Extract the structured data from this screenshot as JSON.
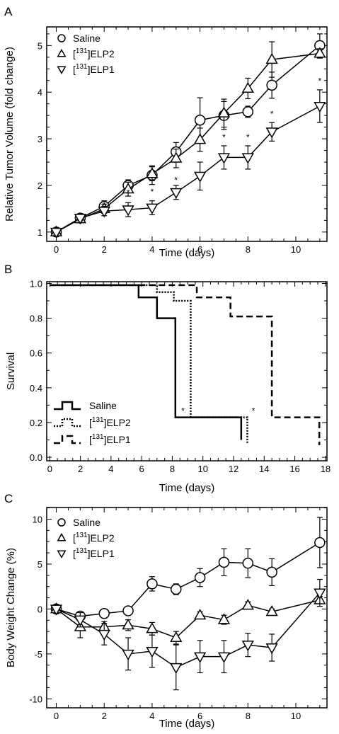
{
  "chart_data": [
    {
      "type": "line",
      "panel": "A",
      "xlabel": "Time (days)",
      "ylabel": "Relative Tumor Volume (fold change)",
      "xlim": [
        -0.4,
        11.3
      ],
      "ylim": [
        0.8,
        5.4
      ],
      "xticks": [
        0,
        2,
        4,
        6,
        8,
        10
      ],
      "yticks": [
        1,
        2,
        3,
        4,
        5
      ],
      "legend": "top-left",
      "series": [
        {
          "name": "Saline",
          "marker": "circle",
          "x": [
            0,
            1,
            2,
            3,
            4,
            5,
            6,
            7,
            8,
            9,
            11
          ],
          "y": [
            1.0,
            1.3,
            1.55,
            2.0,
            2.22,
            2.72,
            3.4,
            3.5,
            3.58,
            4.15,
            5.0
          ],
          "err": [
            0.05,
            0.08,
            0.12,
            0.12,
            0.2,
            0.2,
            0.48,
            0.3,
            0.12,
            0.28,
            0.25
          ]
        },
        {
          "name": "ELP2",
          "sup": "131",
          "prefix": "[",
          "suffix": "]ELP2",
          "marker": "triangle-up",
          "x": [
            0,
            1,
            2,
            3,
            4,
            5,
            6,
            7,
            8,
            9,
            11
          ],
          "y": [
            1.0,
            1.28,
            1.5,
            1.92,
            2.25,
            2.58,
            2.98,
            3.55,
            4.08,
            4.7,
            4.83
          ],
          "err": [
            0.05,
            0.08,
            0.1,
            0.15,
            0.15,
            0.2,
            0.25,
            0.3,
            0.22,
            0.38,
            0.1
          ]
        },
        {
          "name": "ELP1",
          "sup": "131",
          "prefix": "[",
          "suffix": "]ELP1",
          "marker": "triangle-down",
          "x": [
            0,
            1,
            2,
            3,
            4,
            5,
            6,
            7,
            8,
            9,
            11
          ],
          "y": [
            1.0,
            1.3,
            1.45,
            1.48,
            1.52,
            1.85,
            2.2,
            2.6,
            2.6,
            3.15,
            3.7
          ],
          "err": [
            0.05,
            0.06,
            0.1,
            0.15,
            0.15,
            0.15,
            0.3,
            0.25,
            0.25,
            0.2,
            0.35
          ]
        }
      ],
      "annotations": [
        {
          "text": "*",
          "x": 3,
          "y": 1.78
        },
        {
          "text": "*",
          "x": 4,
          "y": 1.8
        },
        {
          "text": "*",
          "x": 5,
          "y": 2.05
        },
        {
          "text": "*",
          "x": 7,
          "y": 2.97
        },
        {
          "text": "*",
          "x": 8,
          "y": 2.97
        },
        {
          "text": "*",
          "x": 9,
          "y": 3.47
        },
        {
          "text": "*",
          "x": 11,
          "y": 4.18
        }
      ]
    },
    {
      "type": "step",
      "panel": "B",
      "xlabel": "Time (days)",
      "ylabel": "Survival",
      "xlim": [
        -0.2,
        18.1
      ],
      "ylim": [
        -0.02,
        1.01
      ],
      "xticks": [
        0,
        2,
        4,
        6,
        8,
        10,
        12,
        14,
        16,
        18
      ],
      "yticks": [
        "0.0",
        "0.2",
        "0.4",
        "0.6",
        "0.8",
        "1.0"
      ],
      "legend": "bottom-left",
      "series": [
        {
          "name": "Saline",
          "style": "solid",
          "x": [
            0,
            5.8,
            7,
            8.2,
            12.5,
            12.5
          ],
          "y": [
            0.99,
            0.92,
            0.8,
            0.23,
            0.23,
            0.1
          ]
        },
        {
          "name": "ELP2",
          "sup": "131",
          "prefix": "[",
          "suffix": "]ELP2",
          "style": "dotted",
          "x": [
            0,
            7,
            8.1,
            9.2,
            12.9,
            12.9
          ],
          "y": [
            0.99,
            0.95,
            0.9,
            0.23,
            0.23,
            0.08
          ]
        },
        {
          "name": "ELP1",
          "sup": "131",
          "prefix": "[",
          "suffix": "]ELP1",
          "style": "dashed",
          "x": [
            0,
            9.6,
            11.8,
            14.5,
            17.6,
            17.6
          ],
          "y": [
            0.99,
            0.92,
            0.81,
            0.23,
            0.23,
            0.07
          ]
        }
      ],
      "annotations": [
        {
          "text": "*",
          "x": 8.7,
          "y": 0.25
        },
        {
          "text": "*",
          "x": 13.3,
          "y": 0.25
        }
      ]
    },
    {
      "type": "line",
      "panel": "C",
      "xlabel": "Time (days)",
      "ylabel": "Body Weight Change (%)",
      "xlim": [
        -0.4,
        11.3
      ],
      "ylim": [
        -11,
        11.3
      ],
      "xticks": [
        0,
        2,
        4,
        6,
        8,
        10
      ],
      "yticks": [
        -10,
        -5,
        0,
        5,
        10
      ],
      "legend": "top-left",
      "series": [
        {
          "name": "Saline",
          "marker": "circle",
          "x": [
            0,
            1,
            2,
            3,
            4,
            5,
            6,
            7,
            8,
            9,
            11
          ],
          "y": [
            0,
            -0.8,
            -0.5,
            -0.2,
            2.8,
            2.2,
            3.5,
            5.2,
            5.1,
            4.1,
            7.4
          ],
          "err": [
            0.2,
            0.4,
            0.3,
            0.4,
            0.8,
            0.6,
            1.0,
            1.5,
            1.6,
            1.5,
            2.8
          ]
        },
        {
          "name": "ELP2",
          "sup": "131",
          "prefix": "[",
          "suffix": "]ELP2",
          "marker": "triangle-up",
          "x": [
            0,
            1,
            2,
            3,
            4,
            5,
            6,
            7,
            8,
            9,
            11
          ],
          "y": [
            0,
            -2.0,
            -2.0,
            -1.8,
            -2.2,
            -3.2,
            -0.7,
            -1.2,
            0.4,
            -0.3,
            1.0
          ],
          "err": [
            0.2,
            1.2,
            0.6,
            0.6,
            0.7,
            0.7,
            0.4,
            0.5,
            0.4,
            0.3,
            0.4
          ]
        },
        {
          "name": "ELP1",
          "sup": "131",
          "prefix": "[",
          "suffix": "]ELP1",
          "marker": "triangle-down",
          "x": [
            0,
            1,
            2,
            3,
            4,
            5,
            6,
            7,
            8,
            9,
            11
          ],
          "y": [
            0,
            -1.2,
            -2.8,
            -5.0,
            -4.7,
            -6.5,
            -5.3,
            -5.3,
            -4.0,
            -4.3,
            1.8
          ],
          "err": [
            0.2,
            0.8,
            1.2,
            1.8,
            1.8,
            2.5,
            1.8,
            1.8,
            1.3,
            1.5,
            1.5
          ]
        }
      ]
    }
  ]
}
